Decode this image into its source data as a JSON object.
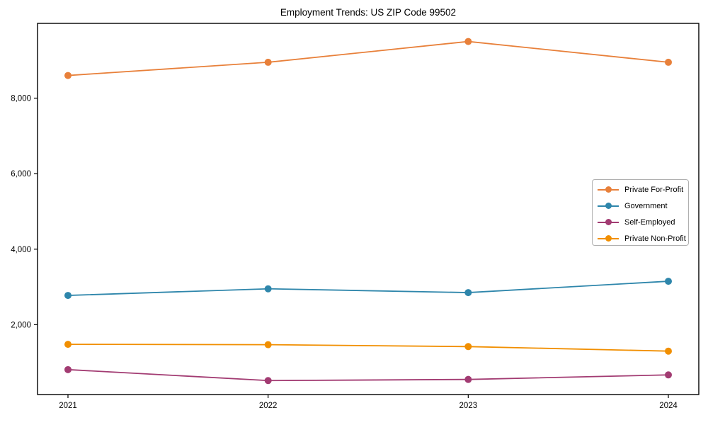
{
  "chart_data": {
    "type": "line",
    "title": "Employment Trends: US ZIP Code 99502",
    "xlabel": "",
    "ylabel": "",
    "x": [
      2021,
      2022,
      2023,
      2024
    ],
    "xtick_labels": [
      "2021",
      "2022",
      "2023",
      "2024"
    ],
    "series": [
      {
        "name": "Private For-Profit",
        "color": "#e8803a",
        "values": [
          8600,
          8950,
          9500,
          8950
        ]
      },
      {
        "name": "Government",
        "color": "#2e86ab",
        "values": [
          2775,
          2950,
          2850,
          3150
        ]
      },
      {
        "name": "Self-Employed",
        "color": "#a23b72",
        "values": [
          810,
          520,
          550,
          670
        ]
      },
      {
        "name": "Private Non-Profit",
        "color": "#f18f01",
        "values": [
          1480,
          1470,
          1420,
          1300
        ]
      }
    ],
    "ylim": [
      150,
      9980
    ],
    "yticks": [
      2000,
      4000,
      6000,
      8000
    ],
    "ytick_labels": [
      "2,000",
      "4,000",
      "6,000",
      "8,000"
    ],
    "grid": false,
    "legend_position": "center right",
    "marker": "circle",
    "background_color": "#ffffff",
    "axis_color": "#000000"
  }
}
